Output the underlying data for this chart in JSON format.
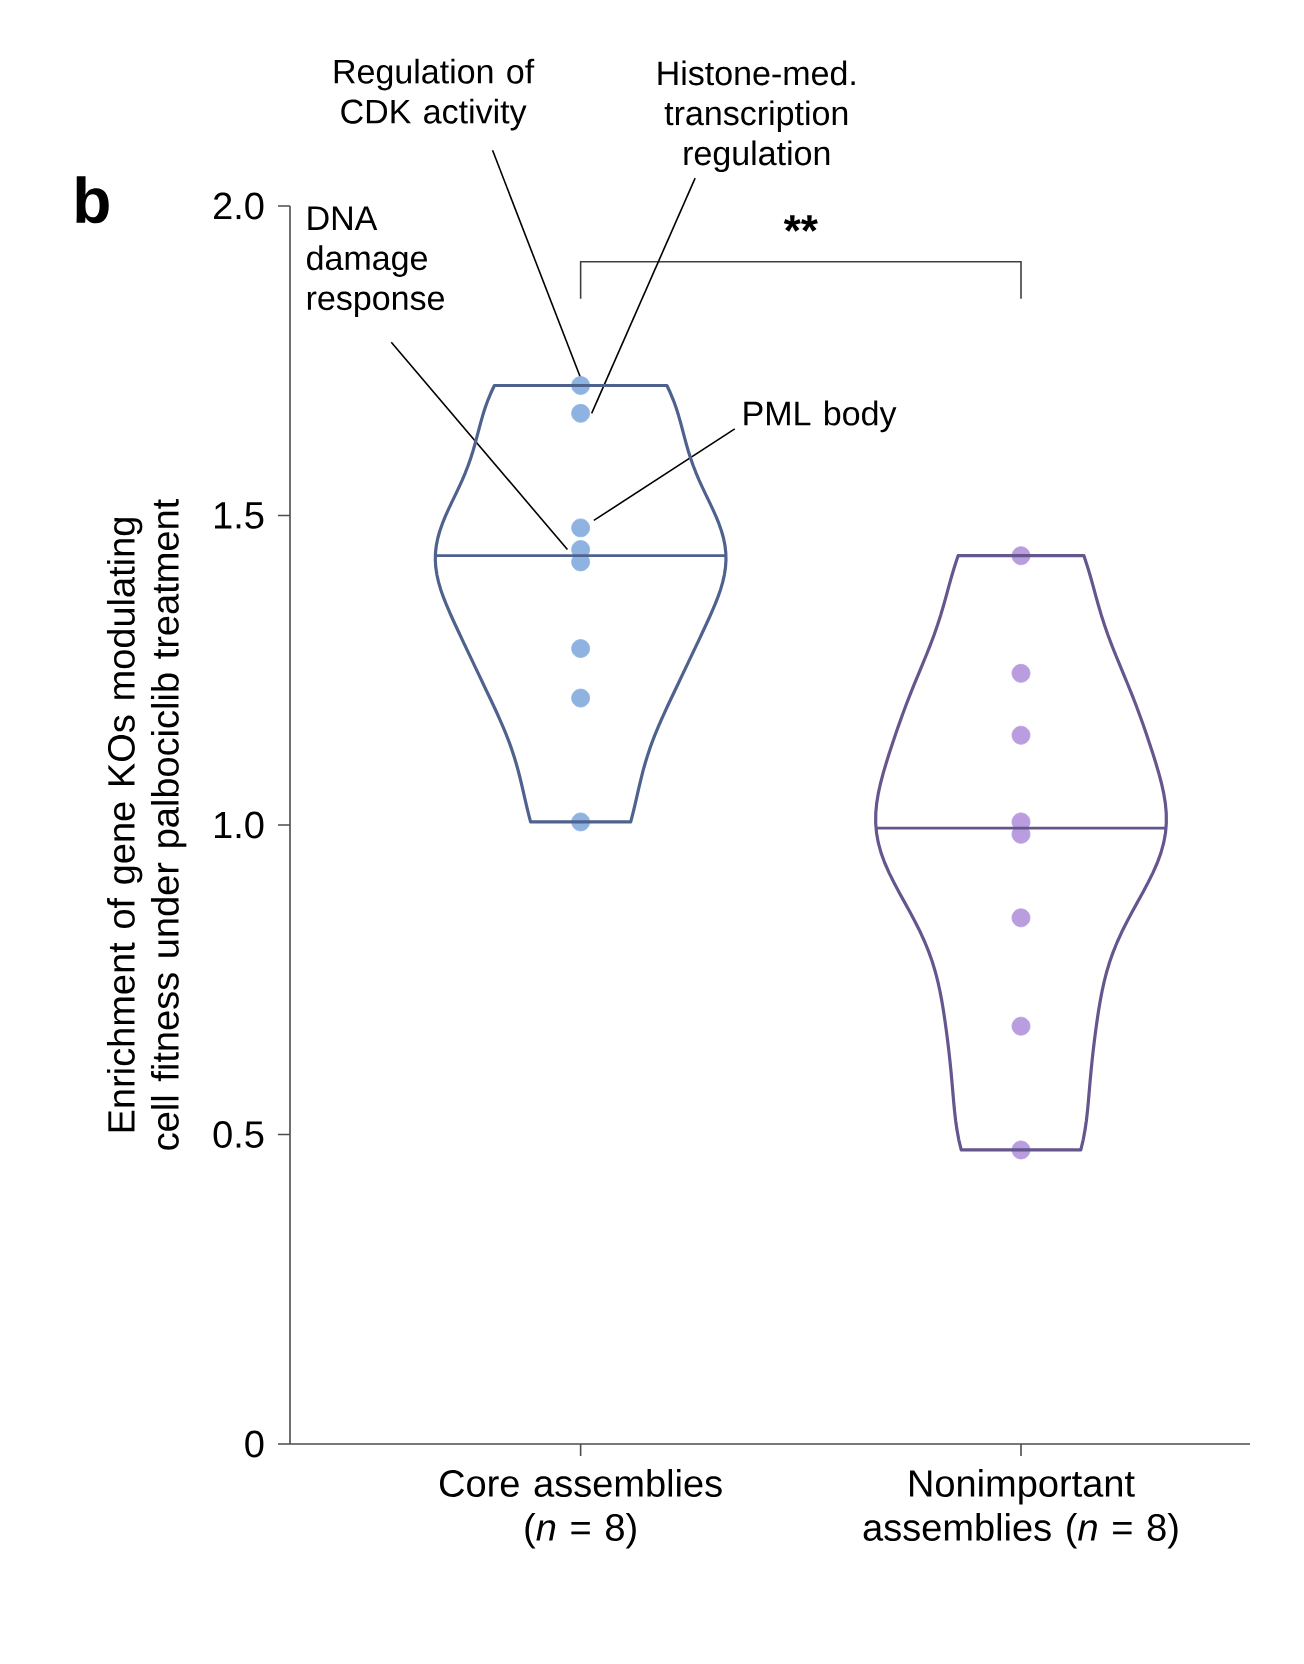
{
  "chart_data": {
    "type": "scatter",
    "ylabel": "Enrichment of gene KOs modulating cell fitness under palbociclib treatment",
    "categories": [
      "Core assemblies (*n* = 8)",
      "Nonimportant assemblies (*n* = 8)"
    ],
    "series": [
      {
        "color": "#8fb3e0",
        "x": [
          "Core assemblies (*n* = 8)",
          "Core assemblies (*n* = 8)",
          "Core assemblies (*n* = 8)",
          "Core assemblies (*n* = 8)",
          "Core assemblies (*n* = 8)",
          "Core assemblies (*n* = 8)",
          "Core assemblies (*n* = 8)",
          "Core assemblies (*n* = 8)"
        ],
        "values": [
          1.71,
          1.665,
          1.48,
          1.445,
          1.425,
          1.285,
          1.205,
          1.005
        ]
      },
      {
        "color": "#b99ddf",
        "x": [
          "Nonimportant assemblies (*n* = 8)",
          "Nonimportant assemblies (*n* = 8)",
          "Nonimportant assemblies (*n* = 8)",
          "Nonimportant assemblies (*n* = 8)",
          "Nonimportant assemblies (*n* = 8)",
          "Nonimportant assemblies (*n* = 8)",
          "Nonimportant assemblies (*n* = 8)",
          "Nonimportant assemblies (*n* = 8)"
        ],
        "values": [
          1.435,
          1.245,
          1.145,
          1.005,
          0.985,
          0.85,
          0.675,
          0.475
        ]
      }
    ],
    "ylim": [
      0,
      2.0
    ],
    "yticks": [
      0,
      0.5,
      {
        "value": 1.0,
        "label": "1.0"
      },
      1.5,
      {
        "value": 2.0,
        "label": "2.0"
      }
    ],
    "marker": "circle",
    "grid": false,
    "legend": false,
    "annotations": [
      "b",
      "**",
      {
        "text": "Regulation of CDK activity",
        "x": "Core assemblies (*n* = 8)",
        "y": 1.71
      },
      {
        "text": "Histone-med. transcription regulation",
        "x": "Core assemblies (*n* = 8)",
        "y": 1.665
      },
      {
        "text": "DNA damage response",
        "x": "Core assemblies (*n* = 8)",
        "y": 1.445
      },
      {
        "text": "PML body",
        "x": "Core assemblies (*n* = 8)",
        "y": 1.48
      }
    ]
  }
}
